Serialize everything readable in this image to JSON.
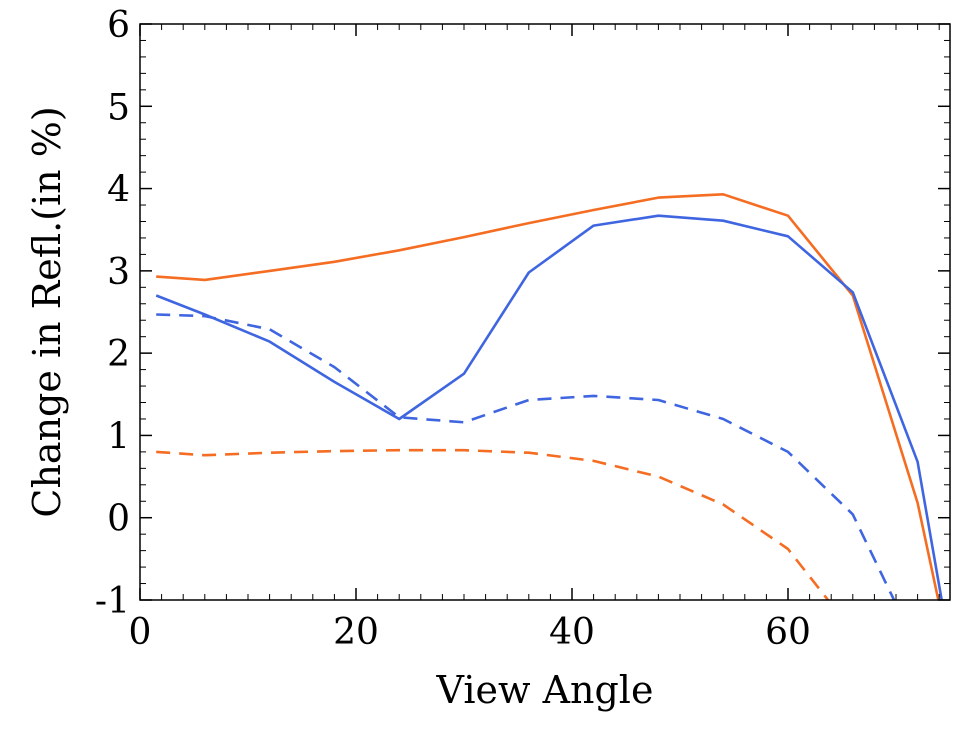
{
  "chart_data": {
    "type": "line",
    "title": "",
    "xlabel": "View Angle",
    "ylabel": "Change in Refl.(in %)",
    "xlim": [
      0,
      75
    ],
    "ylim": [
      -1,
      6
    ],
    "xticks": [
      0,
      20,
      40,
      60
    ],
    "xtick_labels": [
      "0",
      "20",
      "40",
      "60"
    ],
    "yticks": [
      -1,
      0,
      1,
      2,
      3,
      4,
      5,
      6
    ],
    "ytick_labels": [
      "-1",
      "0",
      "1",
      "2",
      "3",
      "4",
      "5",
      "6"
    ],
    "grid": false,
    "legend": false,
    "series": [
      {
        "color": "#f46d22",
        "style": "solid",
        "x": [
          1.5,
          6,
          12,
          18,
          24,
          30,
          36,
          42,
          48,
          54,
          60,
          66,
          72,
          74
        ],
        "y": [
          2.93,
          2.89,
          3.0,
          3.11,
          3.25,
          3.41,
          3.58,
          3.74,
          3.89,
          3.93,
          3.67,
          2.7,
          0.18,
          -1.05
        ]
      },
      {
        "color": "#3f66e0",
        "style": "solid",
        "x": [
          1.5,
          6,
          12,
          18,
          24,
          30,
          36,
          42,
          48,
          54,
          60,
          66,
          72,
          74.3
        ],
        "y": [
          2.7,
          2.47,
          2.14,
          1.65,
          1.2,
          1.75,
          2.98,
          3.55,
          3.67,
          3.61,
          3.42,
          2.74,
          0.68,
          -1.05
        ]
      },
      {
        "color": "#3f66e0",
        "style": "dashed",
        "x": [
          1.5,
          6,
          12,
          18,
          24,
          30,
          36,
          42,
          48,
          54,
          60,
          66,
          70
        ],
        "y": [
          2.47,
          2.45,
          2.29,
          1.83,
          1.22,
          1.16,
          1.43,
          1.48,
          1.43,
          1.2,
          0.8,
          0.04,
          -1.05
        ]
      },
      {
        "color": "#f46d22",
        "style": "dashed",
        "x": [
          1.5,
          6,
          12,
          18,
          24,
          30,
          36,
          42,
          48,
          54,
          60,
          64
        ],
        "y": [
          0.8,
          0.76,
          0.79,
          0.81,
          0.82,
          0.82,
          0.79,
          0.69,
          0.5,
          0.16,
          -0.38,
          -1.05
        ]
      }
    ]
  }
}
